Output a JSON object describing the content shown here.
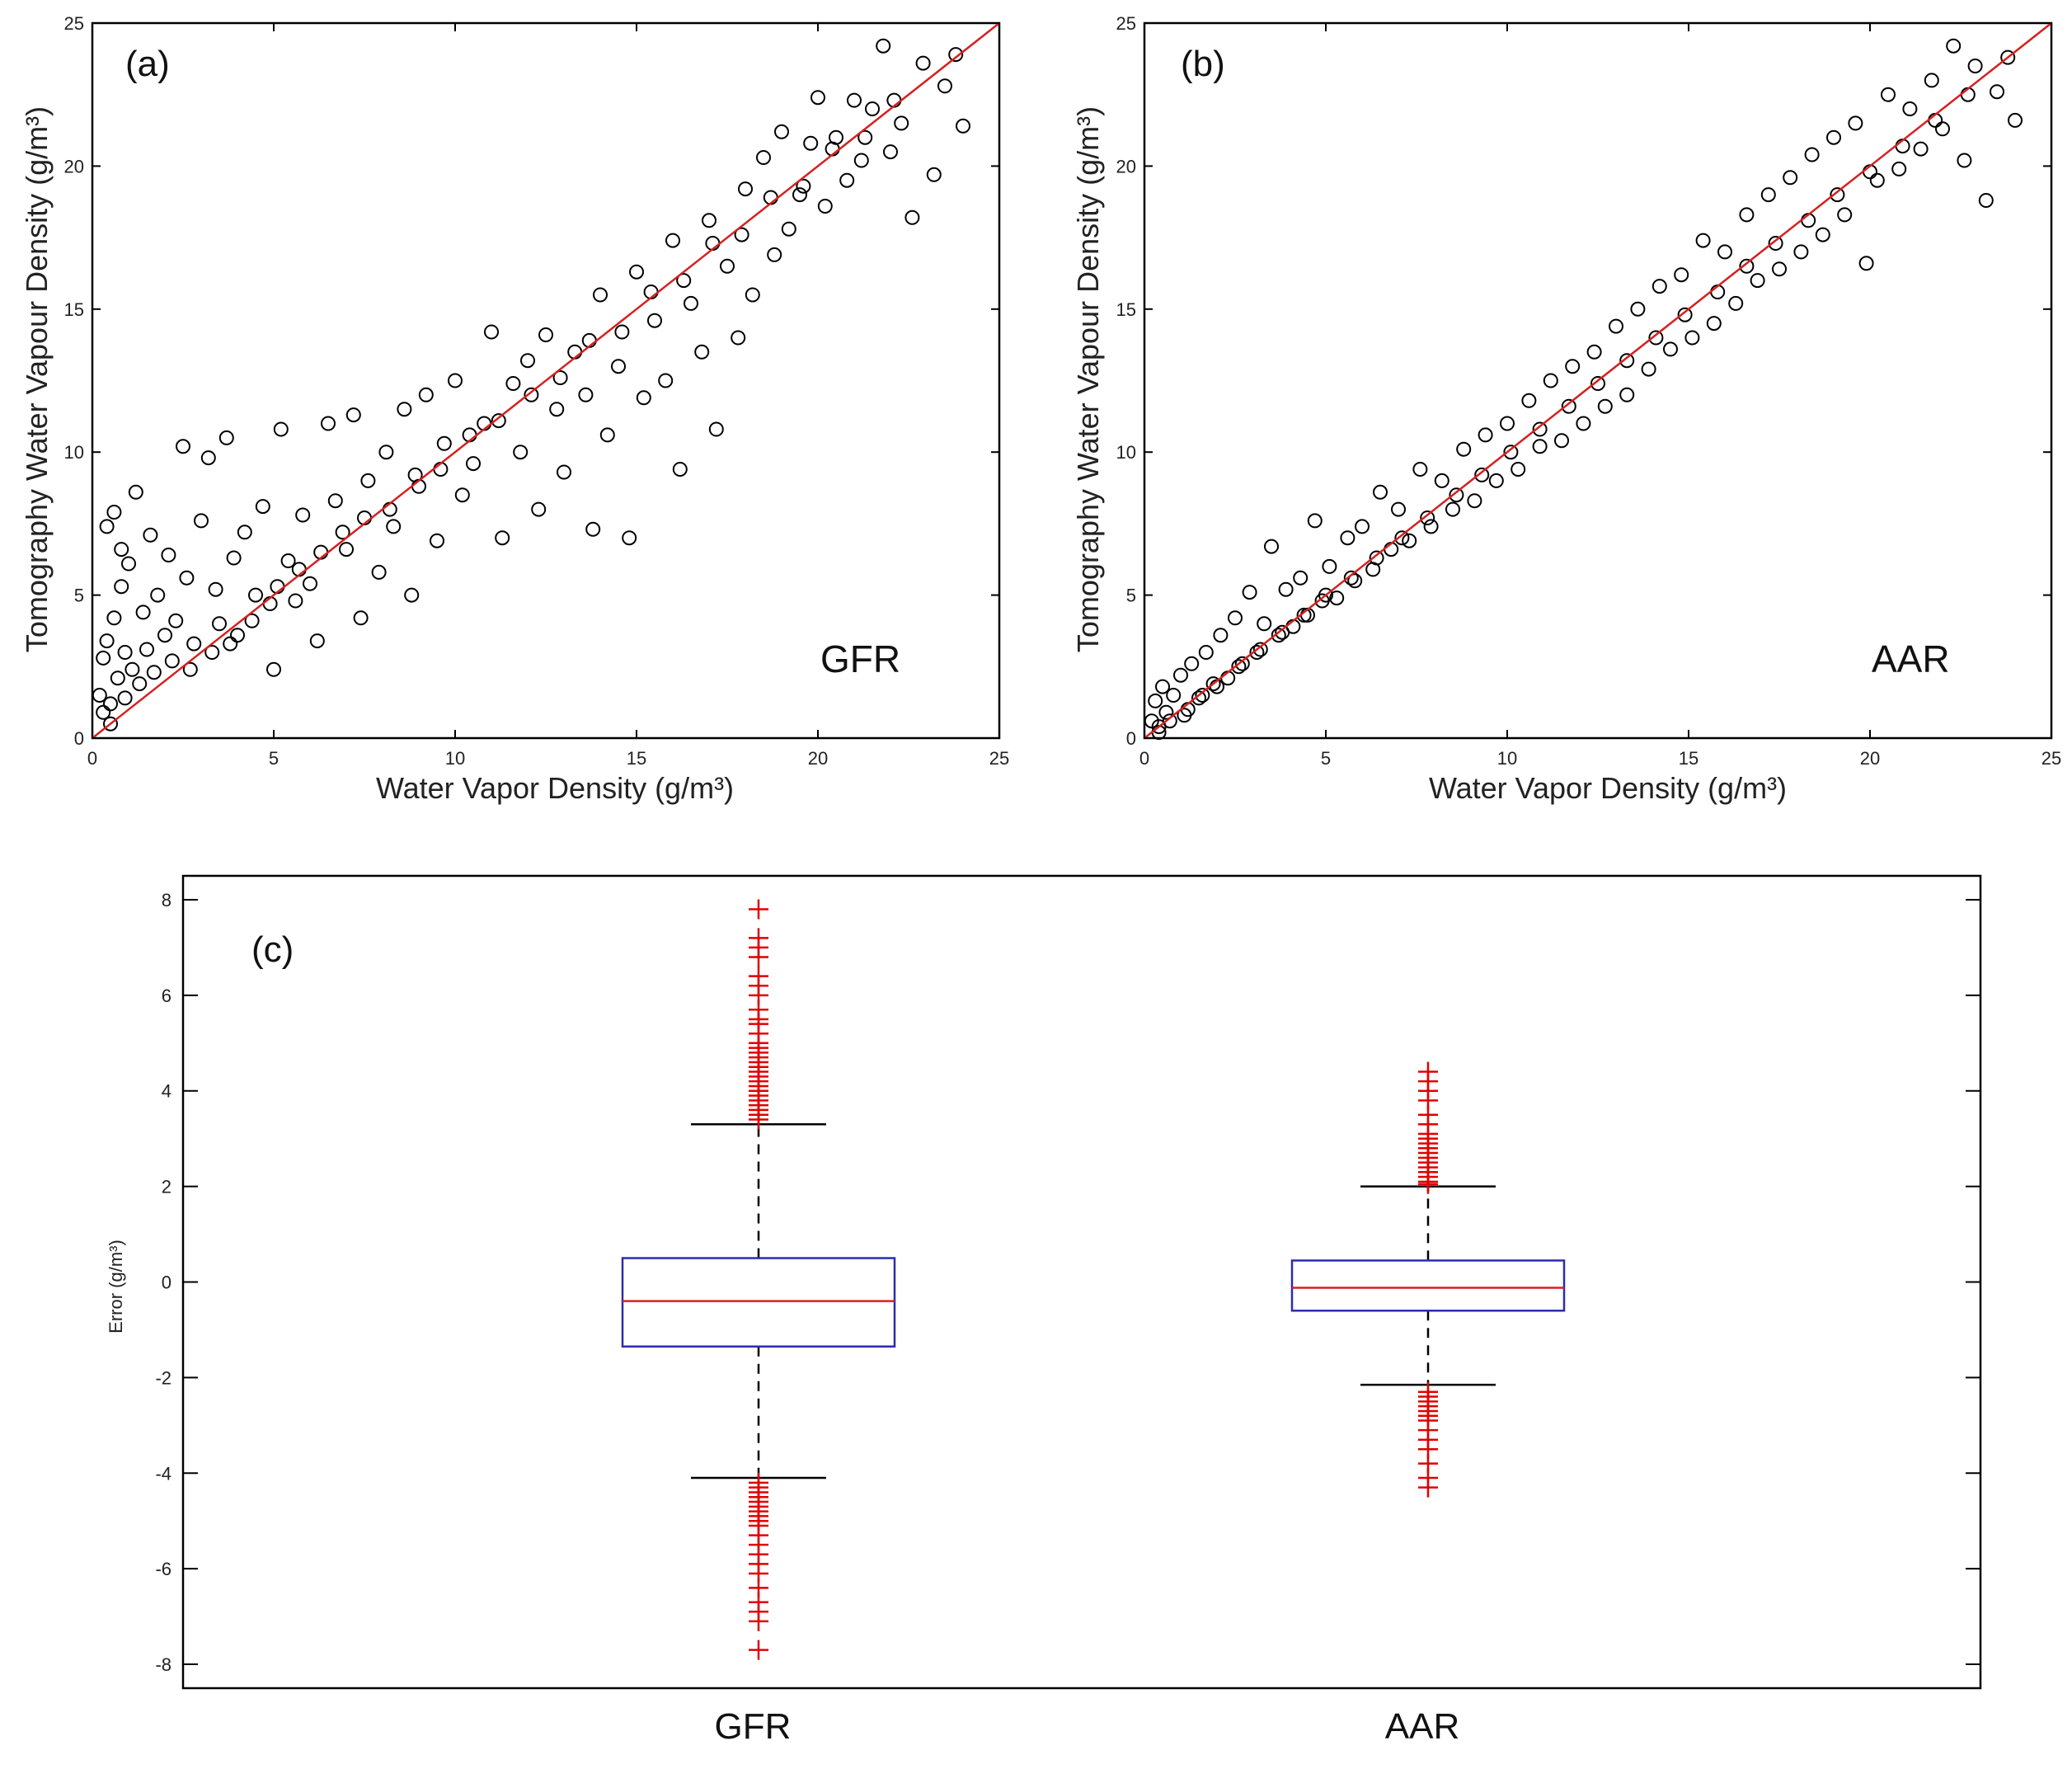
{
  "chart_data": [
    {
      "type": "scatter",
      "panel_label": "(a)",
      "model": "GFR",
      "xlabel": "Water Vapor Density (g/m³)",
      "ylabel": "Tomography Water Vapour Density (g/m³)",
      "xlim": [
        0,
        25
      ],
      "ylim": [
        0,
        25
      ],
      "xticks": [
        "0",
        "5",
        "10",
        "15",
        "20",
        "25"
      ],
      "yticks": [
        "0",
        "5",
        "10",
        "15",
        "20",
        "25"
      ],
      "reference_line": {
        "from": [
          0,
          0
        ],
        "to": [
          25,
          25
        ],
        "color": "#d62020"
      },
      "marker": "open-circle",
      "marker_color": "#000000",
      "points": [
        [
          0.2,
          1.5
        ],
        [
          0.3,
          2.8
        ],
        [
          0.4,
          3.4
        ],
        [
          0.5,
          1.2
        ],
        [
          0.6,
          4.2
        ],
        [
          0.7,
          2.1
        ],
        [
          0.8,
          5.3
        ],
        [
          0.9,
          3.0
        ],
        [
          1.0,
          6.1
        ],
        [
          1.1,
          2.4
        ],
        [
          0.4,
          7.4
        ],
        [
          0.6,
          7.9
        ],
        [
          1.2,
          8.6
        ],
        [
          0.8,
          6.6
        ],
        [
          1.4,
          4.4
        ],
        [
          1.5,
          3.1
        ],
        [
          1.6,
          7.1
        ],
        [
          1.8,
          5.0
        ],
        [
          2.0,
          3.6
        ],
        [
          2.1,
          6.4
        ],
        [
          2.3,
          4.1
        ],
        [
          2.5,
          10.2
        ],
        [
          2.6,
          5.6
        ],
        [
          2.8,
          3.3
        ],
        [
          3.0,
          7.6
        ],
        [
          3.2,
          9.8
        ],
        [
          3.4,
          5.2
        ],
        [
          3.5,
          4.0
        ],
        [
          3.7,
          10.5
        ],
        [
          3.9,
          6.3
        ],
        [
          4.0,
          3.6
        ],
        [
          4.2,
          7.2
        ],
        [
          4.5,
          5.0
        ],
        [
          4.7,
          8.1
        ],
        [
          4.9,
          4.7
        ],
        [
          5.0,
          2.4
        ],
        [
          5.2,
          10.8
        ],
        [
          5.4,
          6.2
        ],
        [
          5.6,
          4.8
        ],
        [
          5.8,
          7.8
        ],
        [
          6.0,
          5.4
        ],
        [
          6.2,
          3.4
        ],
        [
          6.5,
          11.0
        ],
        [
          6.7,
          8.3
        ],
        [
          7.0,
          6.6
        ],
        [
          7.2,
          11.3
        ],
        [
          7.4,
          4.2
        ],
        [
          7.6,
          9.0
        ],
        [
          7.9,
          5.8
        ],
        [
          8.1,
          10.0
        ],
        [
          8.3,
          7.4
        ],
        [
          8.6,
          11.5
        ],
        [
          8.8,
          5.0
        ],
        [
          9.0,
          8.8
        ],
        [
          9.2,
          12.0
        ],
        [
          9.5,
          6.9
        ],
        [
          9.7,
          10.3
        ],
        [
          10.0,
          12.5
        ],
        [
          10.2,
          8.5
        ],
        [
          10.5,
          9.6
        ],
        [
          10.8,
          11.0
        ],
        [
          11.0,
          14.2
        ],
        [
          11.3,
          7.0
        ],
        [
          11.6,
          12.4
        ],
        [
          11.8,
          10.0
        ],
        [
          12.0,
          13.2
        ],
        [
          12.3,
          8.0
        ],
        [
          12.5,
          14.1
        ],
        [
          12.8,
          11.5
        ],
        [
          13.0,
          9.3
        ],
        [
          13.3,
          13.5
        ],
        [
          13.6,
          12.0
        ],
        [
          13.8,
          7.3
        ],
        [
          14.0,
          15.5
        ],
        [
          14.2,
          10.6
        ],
        [
          14.5,
          13.0
        ],
        [
          14.8,
          7.0
        ],
        [
          15.0,
          16.3
        ],
        [
          15.2,
          11.9
        ],
        [
          15.5,
          14.6
        ],
        [
          15.8,
          12.5
        ],
        [
          16.0,
          17.4
        ],
        [
          16.2,
          9.4
        ],
        [
          16.5,
          15.2
        ],
        [
          16.8,
          13.5
        ],
        [
          17.0,
          18.1
        ],
        [
          17.2,
          10.8
        ],
        [
          17.5,
          16.5
        ],
        [
          17.8,
          14.0
        ],
        [
          18.0,
          19.2
        ],
        [
          18.2,
          15.5
        ],
        [
          18.5,
          20.3
        ],
        [
          18.8,
          16.9
        ],
        [
          19.0,
          21.2
        ],
        [
          19.2,
          17.8
        ],
        [
          19.5,
          19.0
        ],
        [
          19.8,
          20.8
        ],
        [
          20.0,
          22.4
        ],
        [
          20.2,
          18.6
        ],
        [
          20.5,
          21.0
        ],
        [
          20.8,
          19.5
        ],
        [
          21.0,
          22.3
        ],
        [
          21.2,
          20.2
        ],
        [
          21.5,
          22.0
        ],
        [
          21.8,
          24.2
        ],
        [
          22.0,
          20.5
        ],
        [
          22.3,
          21.5
        ],
        [
          22.6,
          18.2
        ],
        [
          22.9,
          23.6
        ],
        [
          23.2,
          19.7
        ],
        [
          23.5,
          22.8
        ],
        [
          23.8,
          23.9
        ],
        [
          24.0,
          21.4
        ],
        [
          0.3,
          0.9
        ],
        [
          0.5,
          0.5
        ],
        [
          0.9,
          1.4
        ],
        [
          1.3,
          1.9
        ],
        [
          1.7,
          2.3
        ],
        [
          2.2,
          2.7
        ],
        [
          2.7,
          2.4
        ],
        [
          3.3,
          3.0
        ],
        [
          3.8,
          3.3
        ],
        [
          4.4,
          4.1
        ],
        [
          5.1,
          5.3
        ],
        [
          5.7,
          5.9
        ],
        [
          6.3,
          6.5
        ],
        [
          6.9,
          7.2
        ],
        [
          7.5,
          7.7
        ],
        [
          8.2,
          8.0
        ],
        [
          8.9,
          9.2
        ],
        [
          9.6,
          9.4
        ],
        [
          10.4,
          10.6
        ],
        [
          11.2,
          11.1
        ],
        [
          12.1,
          12.0
        ],
        [
          12.9,
          12.6
        ],
        [
          13.7,
          13.9
        ],
        [
          14.6,
          14.2
        ],
        [
          15.4,
          15.6
        ],
        [
          16.3,
          16.0
        ],
        [
          17.1,
          17.3
        ],
        [
          17.9,
          17.6
        ],
        [
          18.7,
          18.9
        ],
        [
          19.6,
          19.3
        ],
        [
          20.4,
          20.6
        ],
        [
          21.3,
          21.0
        ],
        [
          22.1,
          22.3
        ]
      ]
    },
    {
      "type": "scatter",
      "panel_label": "(b)",
      "model": "AAR",
      "xlabel": "Water Vapor Density (g/m³)",
      "ylabel": "Tomography Water Vapour Density (g/m³)",
      "xlim": [
        0,
        25
      ],
      "ylim": [
        0,
        25
      ],
      "xticks": [
        "0",
        "5",
        "10",
        "15",
        "20",
        "25"
      ],
      "yticks": [
        "0",
        "5",
        "10",
        "15",
        "20",
        "25"
      ],
      "reference_line": {
        "from": [
          0,
          0
        ],
        "to": [
          25,
          25
        ],
        "color": "#d62020"
      },
      "marker": "open-circle",
      "marker_color": "#000000",
      "points": [
        [
          0.2,
          0.6
        ],
        [
          0.3,
          1.3
        ],
        [
          0.4,
          0.4
        ],
        [
          0.5,
          1.8
        ],
        [
          0.6,
          0.9
        ],
        [
          0.8,
          1.5
        ],
        [
          1.0,
          2.2
        ],
        [
          1.1,
          0.8
        ],
        [
          1.3,
          2.6
        ],
        [
          1.5,
          1.4
        ],
        [
          1.7,
          3.0
        ],
        [
          1.9,
          1.9
        ],
        [
          2.1,
          3.6
        ],
        [
          2.3,
          2.1
        ],
        [
          2.5,
          4.2
        ],
        [
          2.7,
          2.6
        ],
        [
          2.9,
          5.1
        ],
        [
          3.1,
          3.0
        ],
        [
          3.3,
          4.0
        ],
        [
          3.5,
          6.7
        ],
        [
          3.7,
          3.6
        ],
        [
          3.9,
          5.2
        ],
        [
          4.1,
          3.9
        ],
        [
          4.3,
          5.6
        ],
        [
          4.5,
          4.3
        ],
        [
          4.7,
          7.6
        ],
        [
          4.9,
          4.8
        ],
        [
          5.1,
          6.0
        ],
        [
          5.3,
          4.9
        ],
        [
          5.6,
          7.0
        ],
        [
          5.8,
          5.5
        ],
        [
          6.0,
          7.4
        ],
        [
          6.3,
          5.9
        ],
        [
          6.5,
          8.6
        ],
        [
          6.8,
          6.6
        ],
        [
          7.0,
          8.0
        ],
        [
          7.3,
          6.9
        ],
        [
          7.6,
          9.4
        ],
        [
          7.9,
          7.4
        ],
        [
          8.2,
          9.0
        ],
        [
          8.5,
          8.0
        ],
        [
          8.8,
          10.1
        ],
        [
          9.1,
          8.3
        ],
        [
          9.4,
          10.6
        ],
        [
          9.7,
          9.0
        ],
        [
          10.0,
          11.0
        ],
        [
          10.3,
          9.4
        ],
        [
          10.6,
          11.8
        ],
        [
          10.9,
          10.2
        ],
        [
          11.2,
          12.5
        ],
        [
          11.5,
          10.4
        ],
        [
          11.8,
          13.0
        ],
        [
          12.1,
          11.0
        ],
        [
          12.4,
          13.5
        ],
        [
          12.7,
          11.6
        ],
        [
          13.0,
          14.4
        ],
        [
          13.3,
          12.0
        ],
        [
          13.6,
          15.0
        ],
        [
          13.9,
          12.9
        ],
        [
          14.2,
          15.8
        ],
        [
          14.5,
          13.6
        ],
        [
          14.8,
          16.2
        ],
        [
          15.1,
          14.0
        ],
        [
          15.4,
          17.4
        ],
        [
          15.7,
          14.5
        ],
        [
          16.0,
          17.0
        ],
        [
          16.3,
          15.2
        ],
        [
          16.6,
          18.3
        ],
        [
          16.9,
          16.0
        ],
        [
          17.2,
          19.0
        ],
        [
          17.5,
          16.4
        ],
        [
          17.8,
          19.6
        ],
        [
          18.1,
          17.0
        ],
        [
          18.4,
          20.4
        ],
        [
          18.7,
          17.6
        ],
        [
          19.0,
          21.0
        ],
        [
          19.3,
          18.3
        ],
        [
          19.6,
          21.5
        ],
        [
          19.9,
          16.6
        ],
        [
          20.2,
          19.5
        ],
        [
          20.5,
          22.5
        ],
        [
          20.8,
          19.9
        ],
        [
          21.1,
          22.0
        ],
        [
          21.4,
          20.6
        ],
        [
          21.7,
          23.0
        ],
        [
          22.0,
          21.3
        ],
        [
          22.3,
          24.2
        ],
        [
          22.6,
          20.2
        ],
        [
          22.9,
          23.5
        ],
        [
          23.2,
          18.8
        ],
        [
          23.5,
          22.6
        ],
        [
          23.8,
          23.8
        ],
        [
          24.0,
          21.6
        ],
        [
          0.4,
          0.2
        ],
        [
          0.7,
          0.6
        ],
        [
          1.2,
          1.0
        ],
        [
          1.6,
          1.5
        ],
        [
          2.0,
          1.8
        ],
        [
          2.6,
          2.5
        ],
        [
          3.2,
          3.1
        ],
        [
          3.8,
          3.7
        ],
        [
          4.4,
          4.3
        ],
        [
          5.0,
          5.0
        ],
        [
          5.7,
          5.6
        ],
        [
          6.4,
          6.3
        ],
        [
          7.1,
          7.0
        ],
        [
          7.8,
          7.7
        ],
        [
          8.6,
          8.5
        ],
        [
          9.3,
          9.2
        ],
        [
          10.1,
          10.0
        ],
        [
          10.9,
          10.8
        ],
        [
          11.7,
          11.6
        ],
        [
          12.5,
          12.4
        ],
        [
          13.3,
          13.2
        ],
        [
          14.1,
          14.0
        ],
        [
          14.9,
          14.8
        ],
        [
          15.8,
          15.6
        ],
        [
          16.6,
          16.5
        ],
        [
          17.4,
          17.3
        ],
        [
          18.3,
          18.1
        ],
        [
          19.1,
          19.0
        ],
        [
          20.0,
          19.8
        ],
        [
          20.9,
          20.7
        ],
        [
          21.8,
          21.6
        ],
        [
          22.7,
          22.5
        ]
      ]
    },
    {
      "type": "box",
      "panel_label": "(c)",
      "ylabel": "Error (g/m³)",
      "ylim": [
        -8.5,
        8.5
      ],
      "yticks": [
        "-8",
        "-6",
        "-4",
        "-2",
        "0",
        "2",
        "4",
        "6",
        "8"
      ],
      "categories": [
        "GFR",
        "AAR"
      ],
      "box_color": "#2b2bb0",
      "median_color": "#d62020",
      "outlier_color": "#e00000",
      "series": [
        {
          "name": "GFR",
          "q1": -1.35,
          "median": -0.4,
          "q3": 0.5,
          "whisker_low": -4.1,
          "whisker_high": 3.3,
          "outliers": [
            3.4,
            3.5,
            3.6,
            3.7,
            3.8,
            3.9,
            4.0,
            4.1,
            4.2,
            4.3,
            4.4,
            4.5,
            4.6,
            4.7,
            4.8,
            4.9,
            5.0,
            5.2,
            5.4,
            5.5,
            5.7,
            6.0,
            6.2,
            6.4,
            6.8,
            7.0,
            7.2,
            7.8,
            -4.2,
            -4.3,
            -4.4,
            -4.5,
            -4.6,
            -4.7,
            -4.8,
            -4.9,
            -5.0,
            -5.1,
            -5.3,
            -5.5,
            -5.7,
            -5.9,
            -6.1,
            -6.4,
            -6.7,
            -6.9,
            -7.1,
            -7.7
          ]
        },
        {
          "name": "AAR",
          "q1": -0.6,
          "median": -0.12,
          "q3": 0.45,
          "whisker_low": -2.15,
          "whisker_high": 2.0,
          "outliers": [
            2.05,
            2.1,
            2.2,
            2.3,
            2.4,
            2.5,
            2.6,
            2.7,
            2.8,
            2.9,
            3.0,
            3.1,
            3.3,
            3.5,
            3.8,
            4.0,
            4.2,
            4.4,
            -2.3,
            -2.4,
            -2.5,
            -2.6,
            -2.7,
            -2.8,
            -2.9,
            -3.1,
            -3.3,
            -3.5,
            -3.8,
            -4.1,
            -4.3
          ]
        }
      ]
    }
  ]
}
